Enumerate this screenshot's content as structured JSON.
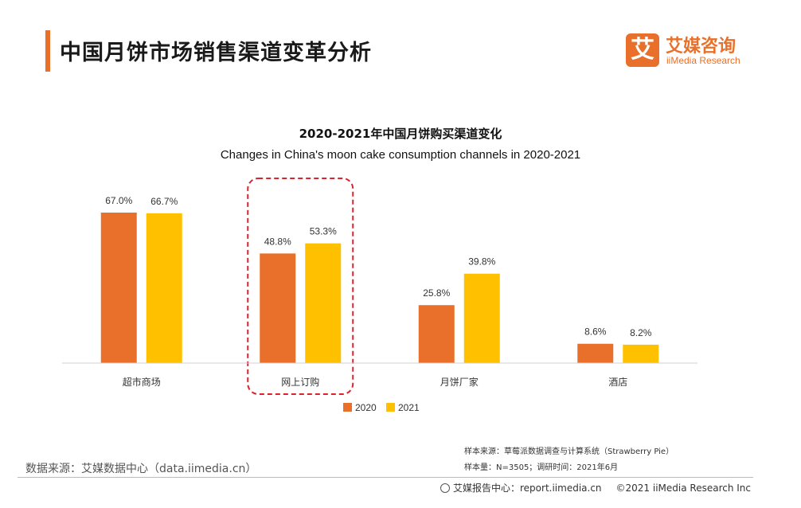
{
  "header": {
    "title": "中国月饼市场销售渠道变革分析",
    "logo_mark": "艾",
    "logo_cn": "艾媒咨询",
    "logo_en": "iiMedia Research"
  },
  "colors": {
    "accent": "#e8702a",
    "series_2020": "#e8702a",
    "series_2021": "#ffc000",
    "highlight": "#d9232d"
  },
  "chart_data": {
    "type": "bar",
    "title": "2020-2021年中国月饼购买渠道变化",
    "subtitle": "Changes in China's moon cake consumption channels in 2020-2021",
    "categories": [
      "超市商场",
      "网上订购",
      "月饼厂家",
      "酒店"
    ],
    "series": [
      {
        "name": "2020",
        "values": [
          67.0,
          48.8,
          25.8,
          8.6
        ],
        "labels": [
          "67.0%",
          "48.8%",
          "25.8%",
          "8.6%"
        ]
      },
      {
        "name": "2021",
        "values": [
          66.7,
          53.3,
          39.8,
          8.2
        ],
        "labels": [
          "66.7%",
          "53.3%",
          "39.8%",
          "8.2%"
        ]
      }
    ],
    "ylim": [
      0,
      70
    ],
    "grid": false,
    "legend_position": "bottom",
    "highlighted_category": "网上订购"
  },
  "notes": {
    "sample_source": "样本来源：草莓派数据调查与计算系统（Strawberry Pie）",
    "sample_size": "样本量：N=3505；调研时间：2021年6月"
  },
  "footer": {
    "data_source": "数据来源：艾媒数据中心（data.iimedia.cn）",
    "report_center": "艾媒报告中心：report.iimedia.cn",
    "copyright": "©2021  iiMedia Research  Inc"
  }
}
